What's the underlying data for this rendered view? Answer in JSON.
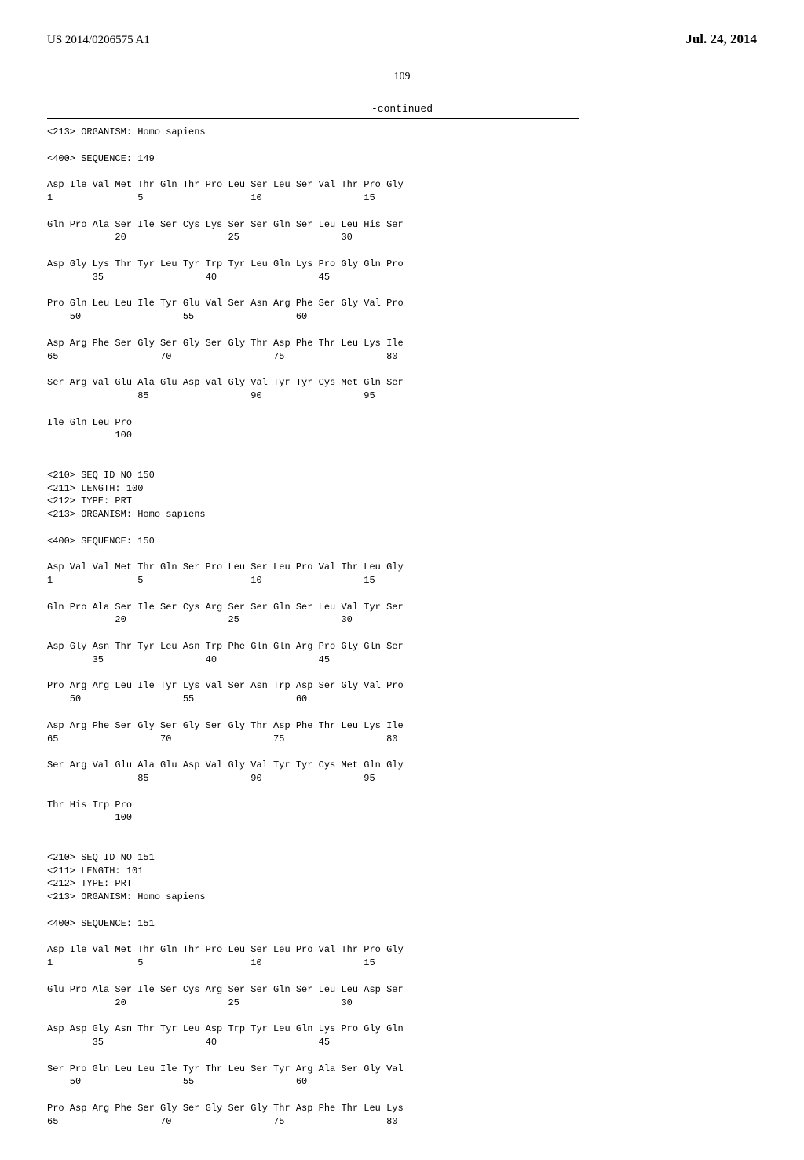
{
  "header": {
    "pub_number": "US 2014/0206575 A1",
    "pub_date": "Jul. 24, 2014"
  },
  "page_number": "109",
  "continued_label": "-continued",
  "sequence_text": "<213> ORGANISM: Homo sapiens\n\n<400> SEQUENCE: 149\n\nAsp Ile Val Met Thr Gln Thr Pro Leu Ser Leu Ser Val Thr Pro Gly\n1               5                   10                  15\n\nGln Pro Ala Ser Ile Ser Cys Lys Ser Ser Gln Ser Leu Leu His Ser\n            20                  25                  30\n\nAsp Gly Lys Thr Tyr Leu Tyr Trp Tyr Leu Gln Lys Pro Gly Gln Pro\n        35                  40                  45\n\nPro Gln Leu Leu Ile Tyr Glu Val Ser Asn Arg Phe Ser Gly Val Pro\n    50                  55                  60\n\nAsp Arg Phe Ser Gly Ser Gly Ser Gly Thr Asp Phe Thr Leu Lys Ile\n65                  70                  75                  80\n\nSer Arg Val Glu Ala Glu Asp Val Gly Val Tyr Tyr Cys Met Gln Ser\n                85                  90                  95\n\nIle Gln Leu Pro\n            100\n\n\n<210> SEQ ID NO 150\n<211> LENGTH: 100\n<212> TYPE: PRT\n<213> ORGANISM: Homo sapiens\n\n<400> SEQUENCE: 150\n\nAsp Val Val Met Thr Gln Ser Pro Leu Ser Leu Pro Val Thr Leu Gly\n1               5                   10                  15\n\nGln Pro Ala Ser Ile Ser Cys Arg Ser Ser Gln Ser Leu Val Tyr Ser\n            20                  25                  30\n\nAsp Gly Asn Thr Tyr Leu Asn Trp Phe Gln Gln Arg Pro Gly Gln Ser\n        35                  40                  45\n\nPro Arg Arg Leu Ile Tyr Lys Val Ser Asn Trp Asp Ser Gly Val Pro\n    50                  55                  60\n\nAsp Arg Phe Ser Gly Ser Gly Ser Gly Thr Asp Phe Thr Leu Lys Ile\n65                  70                  75                  80\n\nSer Arg Val Glu Ala Glu Asp Val Gly Val Tyr Tyr Cys Met Gln Gly\n                85                  90                  95\n\nThr His Trp Pro\n            100\n\n\n<210> SEQ ID NO 151\n<211> LENGTH: 101\n<212> TYPE: PRT\n<213> ORGANISM: Homo sapiens\n\n<400> SEQUENCE: 151\n\nAsp Ile Val Met Thr Gln Thr Pro Leu Ser Leu Pro Val Thr Pro Gly\n1               5                   10                  15\n\nGlu Pro Ala Ser Ile Ser Cys Arg Ser Ser Gln Ser Leu Leu Asp Ser\n            20                  25                  30\n\nAsp Asp Gly Asn Thr Tyr Leu Asp Trp Tyr Leu Gln Lys Pro Gly Gln\n        35                  40                  45\n\nSer Pro Gln Leu Leu Ile Tyr Thr Leu Ser Tyr Arg Ala Ser Gly Val\n    50                  55                  60\n\nPro Asp Arg Phe Ser Gly Ser Gly Ser Gly Thr Asp Phe Thr Leu Lys\n65                  70                  75                  80"
}
